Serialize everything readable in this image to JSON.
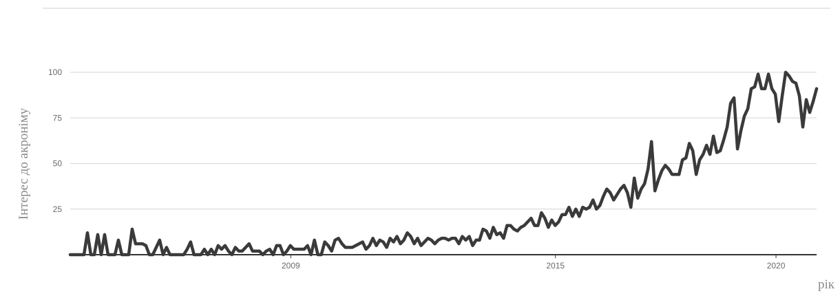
{
  "chart_data": {
    "type": "line",
    "xlabel": "рік",
    "ylabel": "Інтерес до акроніму",
    "xlim": [
      2004.0,
      2020.92
    ],
    "ylim": [
      0,
      100
    ],
    "y_ticks": [
      25,
      50,
      75,
      100
    ],
    "x_ticks": [
      {
        "value": 2009,
        "label": "2009"
      },
      {
        "value": 2015,
        "label": "2015"
      },
      {
        "value": 2020,
        "label": "2020"
      }
    ],
    "grid": true,
    "colors": {
      "line": "#3a3a3a",
      "grid": "#d4d4d4",
      "top_rule": "#dddddd",
      "baseline": "#333333"
    },
    "series": [
      {
        "values": [
          0,
          0,
          0,
          0,
          0,
          12,
          0,
          0,
          11,
          0,
          11,
          0,
          0,
          0,
          8,
          0,
          0,
          0,
          14,
          6,
          6,
          6,
          5,
          0,
          0,
          4,
          8,
          0,
          4,
          0,
          0,
          0,
          0,
          0,
          3,
          7,
          0,
          0,
          0,
          3,
          0,
          3,
          0,
          5,
          3,
          5,
          2,
          0,
          4,
          2,
          2,
          4,
          6,
          2,
          2,
          2,
          0,
          2,
          3,
          0,
          5,
          5,
          0,
          2,
          5,
          3,
          3,
          3,
          3,
          5,
          0,
          8,
          0,
          0,
          7,
          5,
          2,
          8,
          9,
          6,
          4,
          4,
          4,
          5,
          6,
          7,
          3,
          5,
          9,
          5,
          8,
          7,
          4,
          9,
          7,
          10,
          6,
          8,
          12,
          10,
          6,
          9,
          5,
          7,
          9,
          8,
          6,
          8,
          9,
          9,
          8,
          9,
          9,
          6,
          10,
          8,
          10,
          5,
          8,
          8,
          14,
          13,
          9,
          15,
          11,
          12,
          9,
          16,
          16,
          14,
          13,
          15,
          16,
          18,
          20,
          16,
          16,
          23,
          20,
          15,
          19,
          16,
          18,
          22,
          22,
          26,
          21,
          25,
          21,
          26,
          25,
          26,
          30,
          25,
          27,
          32,
          36,
          34,
          30,
          33,
          36,
          38,
          34,
          26,
          42,
          31,
          36,
          39,
          47,
          62,
          35,
          41,
          46,
          49,
          47,
          44,
          44,
          44,
          52,
          53,
          61,
          57,
          44,
          52,
          55,
          60,
          55,
          65,
          56,
          57,
          63,
          70,
          83,
          86,
          58,
          68,
          76,
          80,
          91,
          92,
          99,
          91,
          91,
          99,
          91,
          88,
          73,
          87,
          100,
          98,
          95,
          94,
          87,
          70,
          85,
          78,
          84,
          91
        ]
      }
    ]
  }
}
